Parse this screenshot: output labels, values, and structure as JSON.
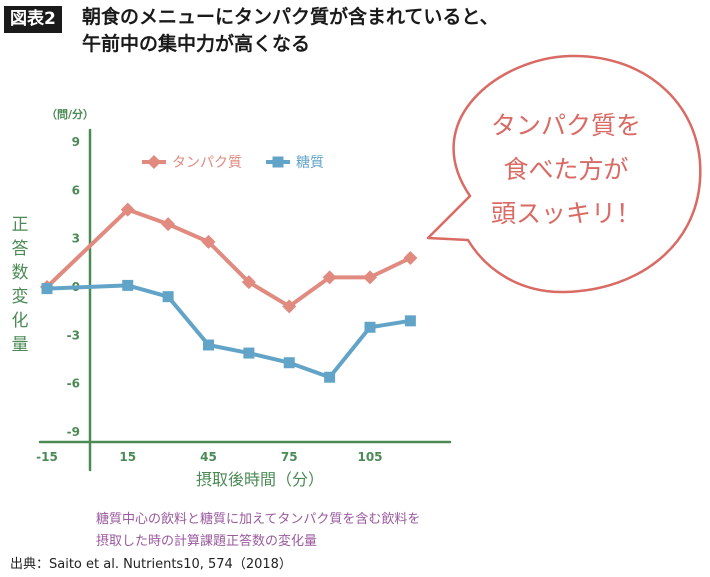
{
  "header": {
    "badge": "図表2",
    "title_line1": "朝食のメニューにタンパク質が含まれていると、",
    "title_line2": "午前中の集中力が高くなる"
  },
  "source": "出典：Saito et al. Nutrients10, 574（2018）",
  "colors": {
    "axis": "#4b8a55",
    "protein": "#e08a80",
    "sugar": "#62a4c8",
    "note": "#9a5a9e",
    "bubble": "#d96a64"
  },
  "chart_data": {
    "type": "line",
    "xlabel": "摂取後時間（分）",
    "ylabel": "正答数変化量",
    "yunit": "（問/分）",
    "xlim": [
      -15,
      135
    ],
    "ylim": [
      -10.5,
      9
    ],
    "x_ticks": [
      -15,
      15,
      45,
      75,
      105
    ],
    "y_ticks": [
      9,
      6,
      3,
      0,
      -3,
      -6,
      -9
    ],
    "y_tick_labels": [
      "9",
      "6",
      "3",
      "0",
      "-3",
      "-6",
      "-9"
    ],
    "series": [
      {
        "name": "タンパク質",
        "marker": "diamond",
        "x": [
          -15,
          15,
          30,
          45,
          60,
          75,
          90,
          105,
          120
        ],
        "y": [
          0,
          4.8,
          3.9,
          2.8,
          0.3,
          -1.2,
          0.6,
          0.6,
          1.8
        ]
      },
      {
        "name": "糖質",
        "marker": "square",
        "x": [
          -15,
          15,
          30,
          45,
          60,
          75,
          90,
          105,
          120
        ],
        "y": [
          -0.1,
          0.1,
          -0.6,
          -3.6,
          -4.1,
          -4.7,
          -5.6,
          -2.5,
          -2.1
        ]
      }
    ],
    "legend_position": "top",
    "grid": false,
    "annotations": {
      "bubble_lines": [
        "タンパク質を",
        "食べた方が",
        "頭スッキリ！"
      ],
      "note_lines": [
        "糖質中心の飲料と糖質に加えてタンパク質を含む飲料を",
        "摂取した時の計算課題正答数の変化量"
      ]
    }
  }
}
